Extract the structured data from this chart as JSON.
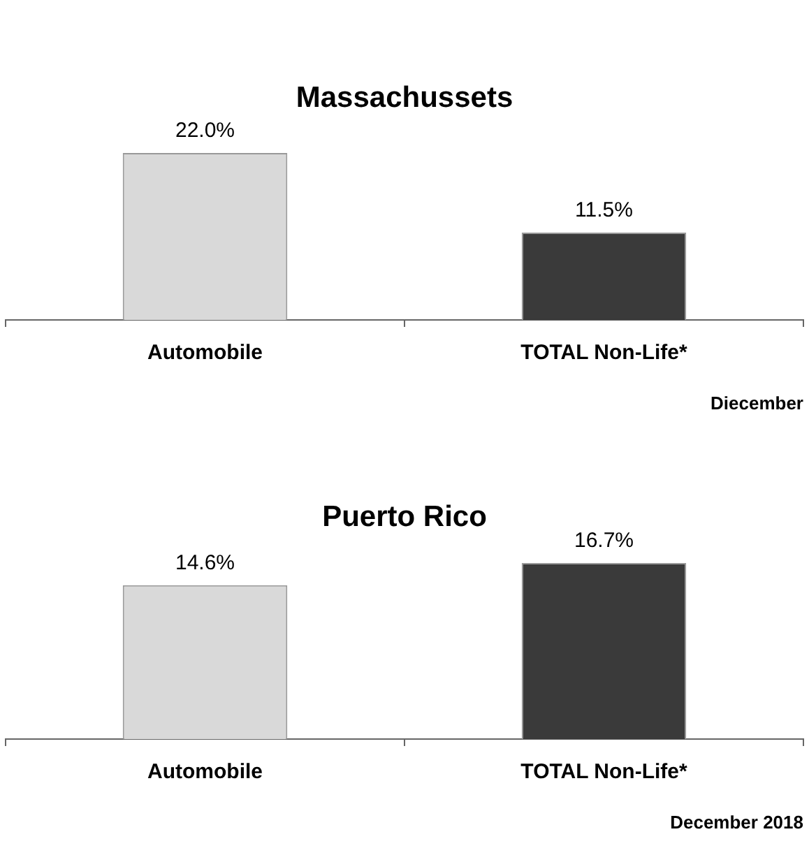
{
  "chart_data": [
    {
      "type": "bar",
      "title": "Massachussets",
      "categories": [
        "Automobile",
        "TOTAL Non-Life*"
      ],
      "values": [
        22.0,
        11.5
      ],
      "colors": [
        "#d9d9d9",
        "#3a3a3a"
      ],
      "value_labels": [
        "22.0%",
        "11.5%"
      ],
      "annotations": [
        "Diecember"
      ]
    },
    {
      "type": "bar",
      "title": "Puerto Rico",
      "categories": [
        "Automobile",
        "TOTAL Non-Life*"
      ],
      "values": [
        14.6,
        16.7
      ],
      "colors": [
        "#d9d9d9",
        "#3a3a3a"
      ],
      "value_labels": [
        "14.6%",
        "16.7%"
      ],
      "annotations": [
        "December 2018"
      ]
    }
  ]
}
